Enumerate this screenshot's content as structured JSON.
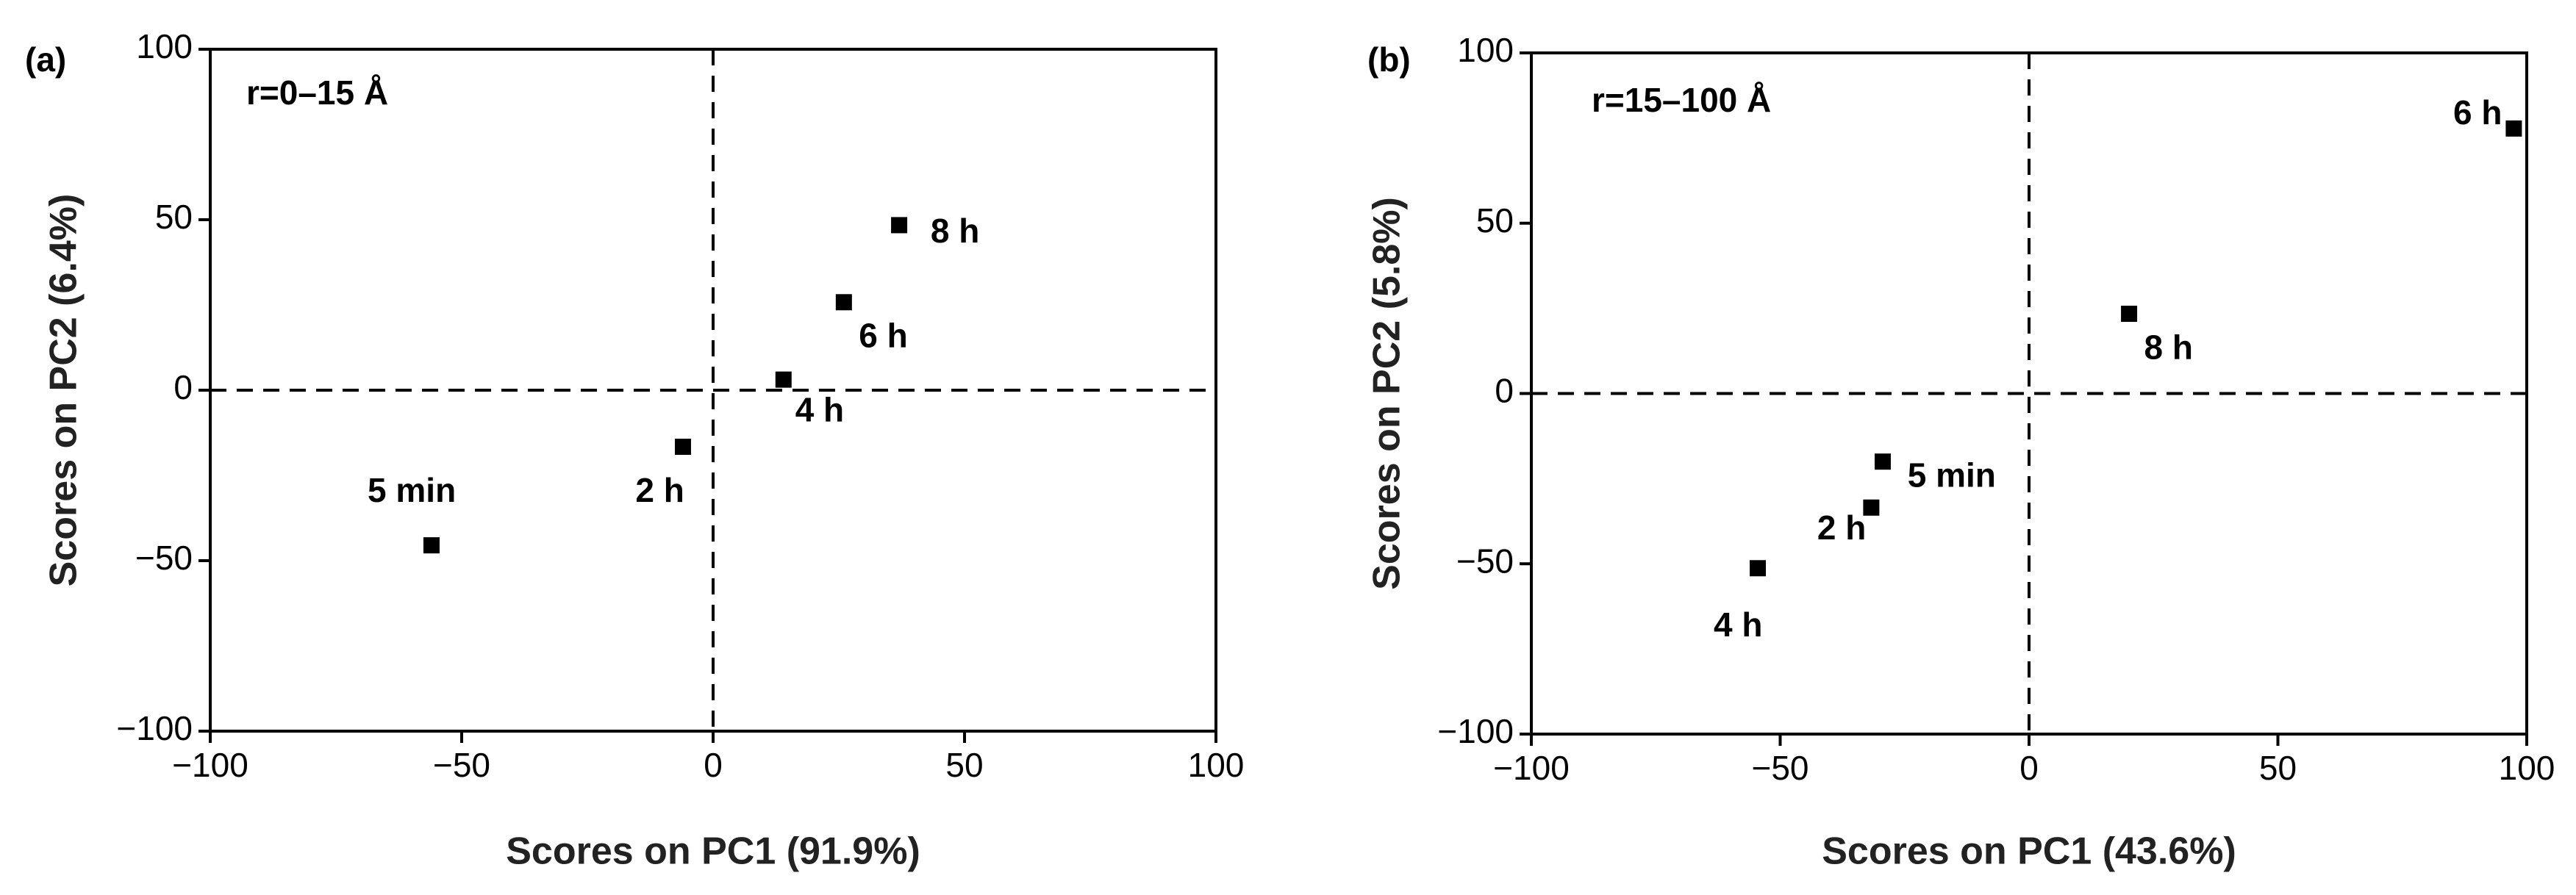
{
  "chart_data": [
    {
      "type": "scatter",
      "panel": "(a)",
      "annotation": "r=0–15 Å",
      "x_label": "Scores on PC1 (91.9%)",
      "y_label": "Scores on PC2 (6.4%)",
      "x": [
        -56,
        -6,
        14,
        26,
        37
      ],
      "y": [
        -45.5,
        -16.6,
        3.1,
        25.8,
        48.4
      ],
      "point_labels": [
        "5 min",
        "2 h",
        "4 h",
        "6 h",
        "8 h"
      ],
      "color": "#000000",
      "xlim": [
        -100,
        100
      ],
      "ylim": [
        -100,
        100
      ],
      "xticks": [
        {
          "value": -100,
          "label": "−100"
        },
        {
          "value": -50,
          "label": "−50"
        },
        0,
        50,
        100
      ],
      "yticks": [
        {
          "value": -100,
          "label": "−100"
        },
        {
          "value": -50,
          "label": "−50"
        },
        0,
        50,
        100
      ],
      "zero_lines": true
    },
    {
      "type": "scatter",
      "panel": "(b)",
      "annotation": "r=15–100 Å",
      "x_label": "Scores on PC1 (43.6%)",
      "y_label": "Scores on PC2 (5.8%)",
      "x": [
        97.4,
        20.1,
        -29.4,
        -31.7,
        -54.5
      ],
      "y": [
        77.8,
        23.4,
        -20,
        -33.5,
        -51.3
      ],
      "point_labels": [
        "6 h",
        "8 h",
        "5 min",
        "2 h",
        "4 h"
      ],
      "color": "#000000",
      "xlim": [
        -100,
        100
      ],
      "ylim": [
        -100,
        100
      ],
      "xticks": [
        {
          "value": -100,
          "label": "−100"
        },
        {
          "value": -50,
          "label": "−50"
        },
        0,
        50,
        100
      ],
      "yticks": [
        {
          "value": -100,
          "label": "−100"
        },
        {
          "value": -50,
          "label": "−50"
        },
        0,
        50,
        100
      ],
      "zero_lines": true
    }
  ]
}
